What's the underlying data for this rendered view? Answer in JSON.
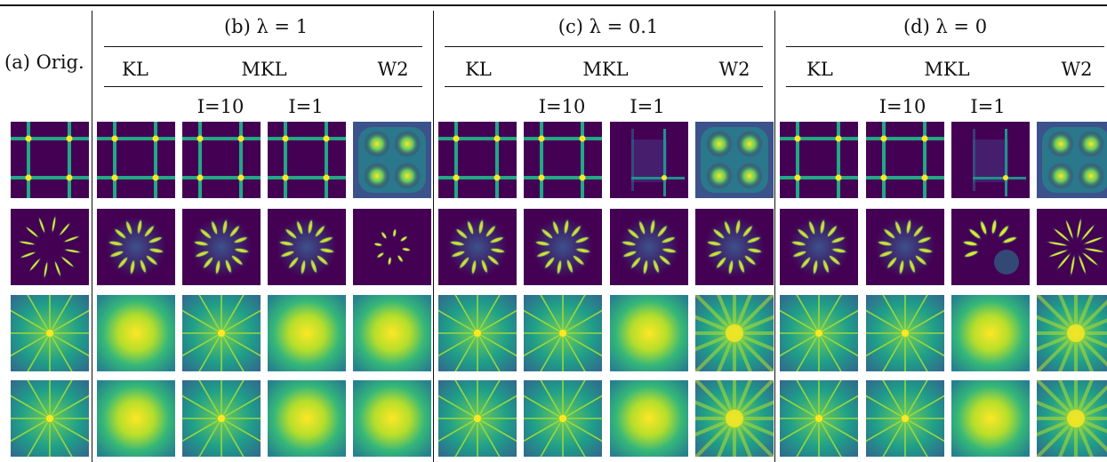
{
  "header": {
    "orig_label": "(a) Orig.",
    "groups": [
      {
        "id": "b",
        "title": "(b) λ = 1"
      },
      {
        "id": "c",
        "title": "(c) λ = 0.1"
      },
      {
        "id": "d",
        "title": "(d) λ = 0"
      }
    ],
    "methods": [
      "KL",
      "MKL",
      "W2"
    ],
    "sub_labels": [
      "I=10",
      "I=1"
    ]
  },
  "rows": [
    {
      "name": "grid",
      "tiles": [
        "grid",
        "grid",
        "grid",
        "grid",
        "blobs",
        "grid",
        "grid",
        "grid-partial",
        "blobs",
        "grid",
        "grid",
        "grid-partial",
        "blobs"
      ]
    },
    {
      "name": "ring",
      "tiles": [
        "ring-sharp",
        "ring-blur",
        "ring-blur",
        "ring-blur",
        "ring-small",
        "ring-blur",
        "ring-blur",
        "ring-blur",
        "ring-blur",
        "ring-blur",
        "ring-blur",
        "ring-partial",
        "ring-star"
      ]
    },
    {
      "name": "star",
      "tiles": [
        "star",
        "blob",
        "star",
        "blob",
        "blob",
        "star",
        "star",
        "blob",
        "star-fuzzy",
        "star",
        "star",
        "blob",
        "star-fuzzy"
      ]
    },
    {
      "name": "star2",
      "tiles": [
        "star",
        "blob",
        "star",
        "blob",
        "blob",
        "star",
        "star",
        "blob",
        "star-fuzzy",
        "star",
        "star",
        "blob",
        "star-fuzzy"
      ]
    }
  ],
  "colors": {
    "bg": "#440154",
    "mid": "#21918c",
    "hi": "#fde725"
  }
}
